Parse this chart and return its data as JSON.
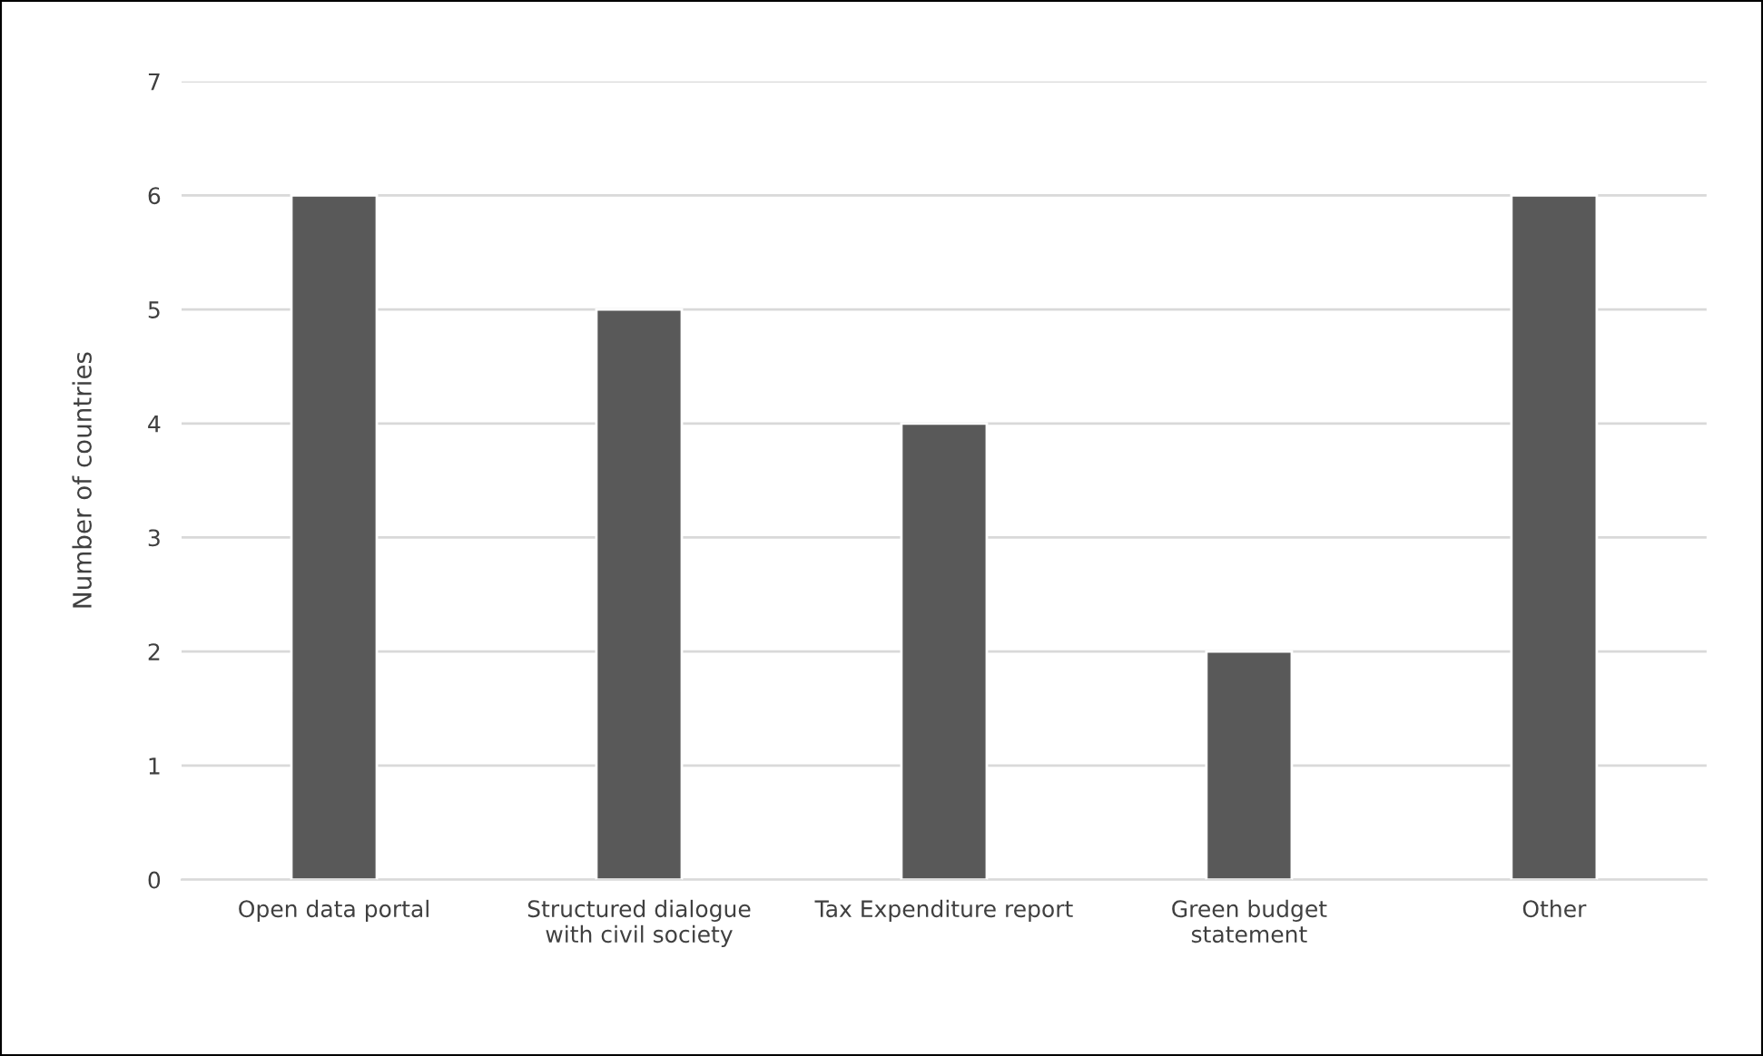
{
  "chart_data": {
    "type": "bar",
    "ylabel": "Number of countries",
    "categories": [
      "Open data portal",
      "Structured dialogue\nwith civil society",
      "Tax Expenditure report",
      "Green budget\nstatement",
      "Other"
    ],
    "values": [
      6,
      5,
      4,
      2,
      6
    ],
    "color": "#595959",
    "ylim": [
      0,
      7
    ],
    "yticks": [
      0,
      1,
      2,
      3,
      4,
      5,
      6,
      7
    ],
    "grid": "y"
  }
}
